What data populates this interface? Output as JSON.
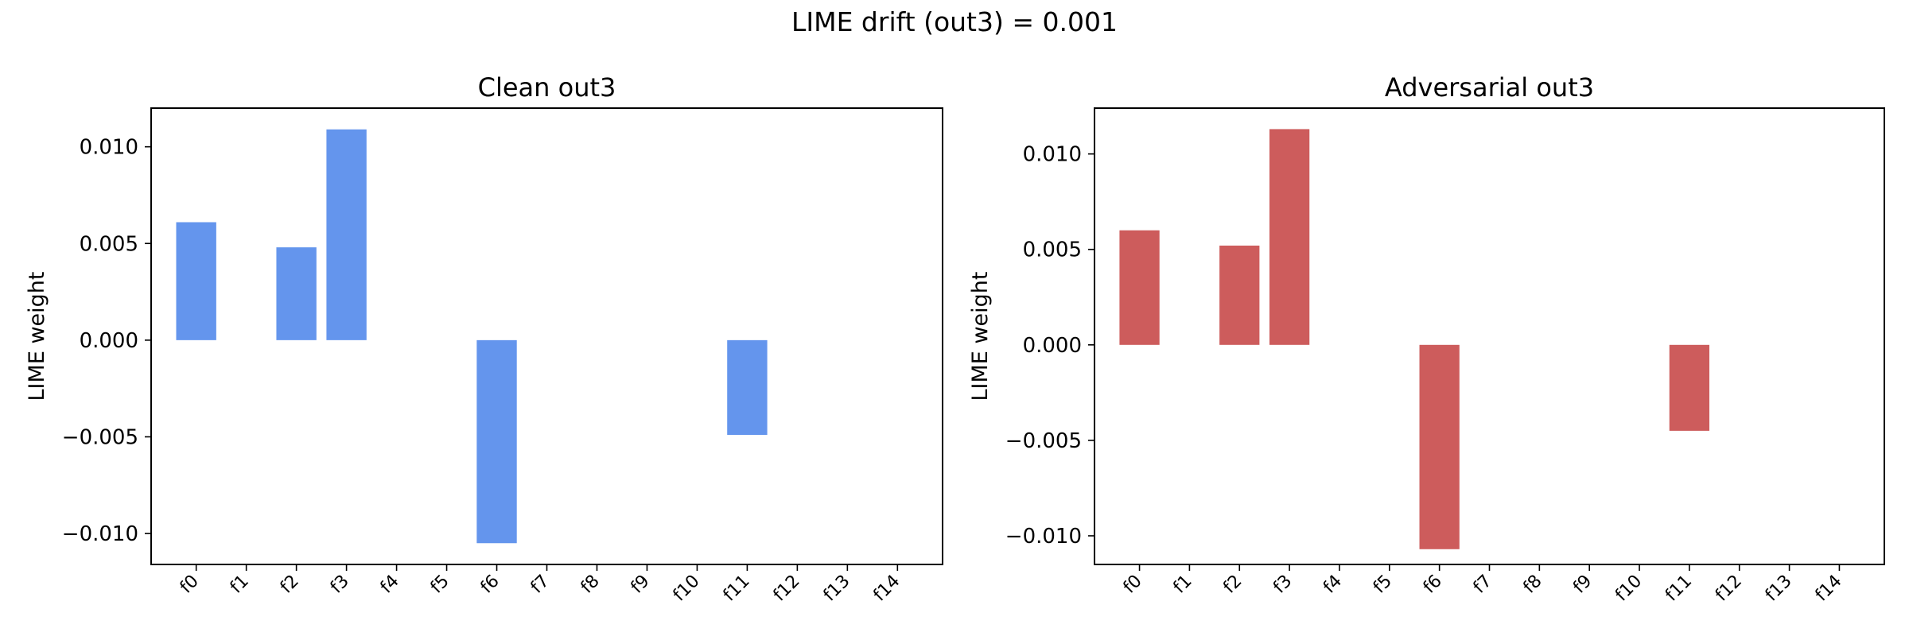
{
  "figure": {
    "suptitle": "LIME drift (out3) = 0.001"
  },
  "chart_data": [
    {
      "type": "bar",
      "title": "Clean out3",
      "xlabel": "",
      "ylabel": "LIME weight",
      "categories": [
        "f0",
        "f1",
        "f2",
        "f3",
        "f4",
        "f5",
        "f6",
        "f7",
        "f8",
        "f9",
        "f10",
        "f11",
        "f12",
        "f13",
        "f14"
      ],
      "values": [
        0.0061,
        0,
        0.0048,
        0.0109,
        0,
        0,
        -0.0105,
        0,
        0,
        0,
        0,
        -0.0049,
        0,
        0,
        0
      ],
      "ylim": [
        -0.0116,
        0.012
      ],
      "yticks": [
        0.01,
        0.005,
        0.0,
        -0.005,
        -0.01
      ],
      "ytick_labels": [
        "0.010",
        "0.005",
        "0.000",
        "−0.005",
        "−0.010"
      ],
      "color": "#6495ED",
      "grid": false
    },
    {
      "type": "bar",
      "title": "Adversarial out3",
      "xlabel": "",
      "ylabel": "LIME weight",
      "categories": [
        "f0",
        "f1",
        "f2",
        "f3",
        "f4",
        "f5",
        "f6",
        "f7",
        "f8",
        "f9",
        "f10",
        "f11",
        "f12",
        "f13",
        "f14"
      ],
      "values": [
        0.006,
        0,
        0.0052,
        0.0113,
        0,
        0,
        -0.0107,
        0,
        0,
        0,
        0,
        -0.0045,
        0,
        0,
        0
      ],
      "ylim": [
        -0.0115,
        0.0124
      ],
      "yticks": [
        0.01,
        0.005,
        0.0,
        -0.005,
        -0.01
      ],
      "ytick_labels": [
        "0.010",
        "0.005",
        "0.000",
        "−0.005",
        "−0.010"
      ],
      "color": "#CD5C5C",
      "grid": false
    }
  ]
}
